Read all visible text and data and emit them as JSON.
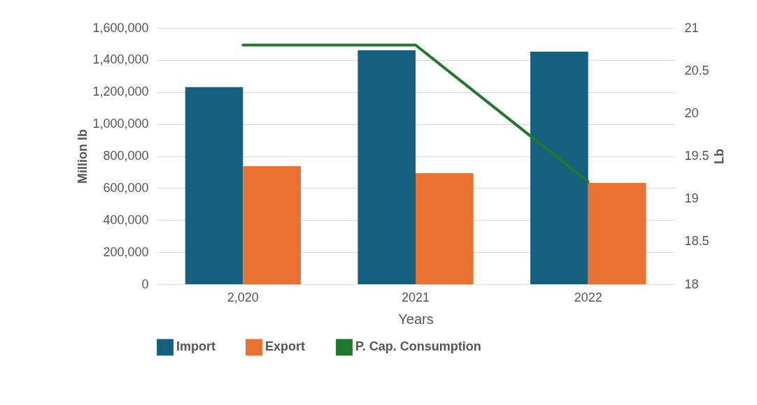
{
  "chart_data": {
    "type": "bar",
    "categories": [
      "2,020",
      "2021",
      "2022"
    ],
    "xlabel": "Years",
    "ylabel": "Million lb",
    "y2label": "Lb",
    "series": [
      {
        "name": "Import",
        "color": "#16607f",
        "values": [
          1230000,
          1460000,
          1452000
        ]
      },
      {
        "name": "Export",
        "color": "#e97132",
        "values": [
          737000,
          693000,
          632000
        ]
      },
      {
        "name": "P. Cap. Consumption",
        "color": "#1e7a2a",
        "type": "line",
        "axis": "y2",
        "values": [
          20.8,
          20.8,
          19.2
        ]
      }
    ],
    "ylim": [
      0,
      1600000
    ],
    "yticks": [
      0,
      {
        "value": 200000,
        "label": "200,000"
      },
      {
        "value": 400000,
        "label": "400,000"
      },
      {
        "value": 600000,
        "label": "600,000"
      },
      {
        "value": 800000,
        "label": "800,000"
      },
      {
        "value": 1000000,
        "label": "1,000,000"
      },
      {
        "value": 1200000,
        "label": "1,200,000"
      },
      {
        "value": 1400000,
        "label": "1,400,000"
      },
      {
        "value": 1600000,
        "label": "1,600,000"
      }
    ],
    "y2lim": [
      18,
      21
    ],
    "y2ticks": [
      18,
      18.5,
      19,
      19.5,
      20,
      20.5,
      21
    ],
    "grid": "y",
    "legend": "bottom"
  }
}
